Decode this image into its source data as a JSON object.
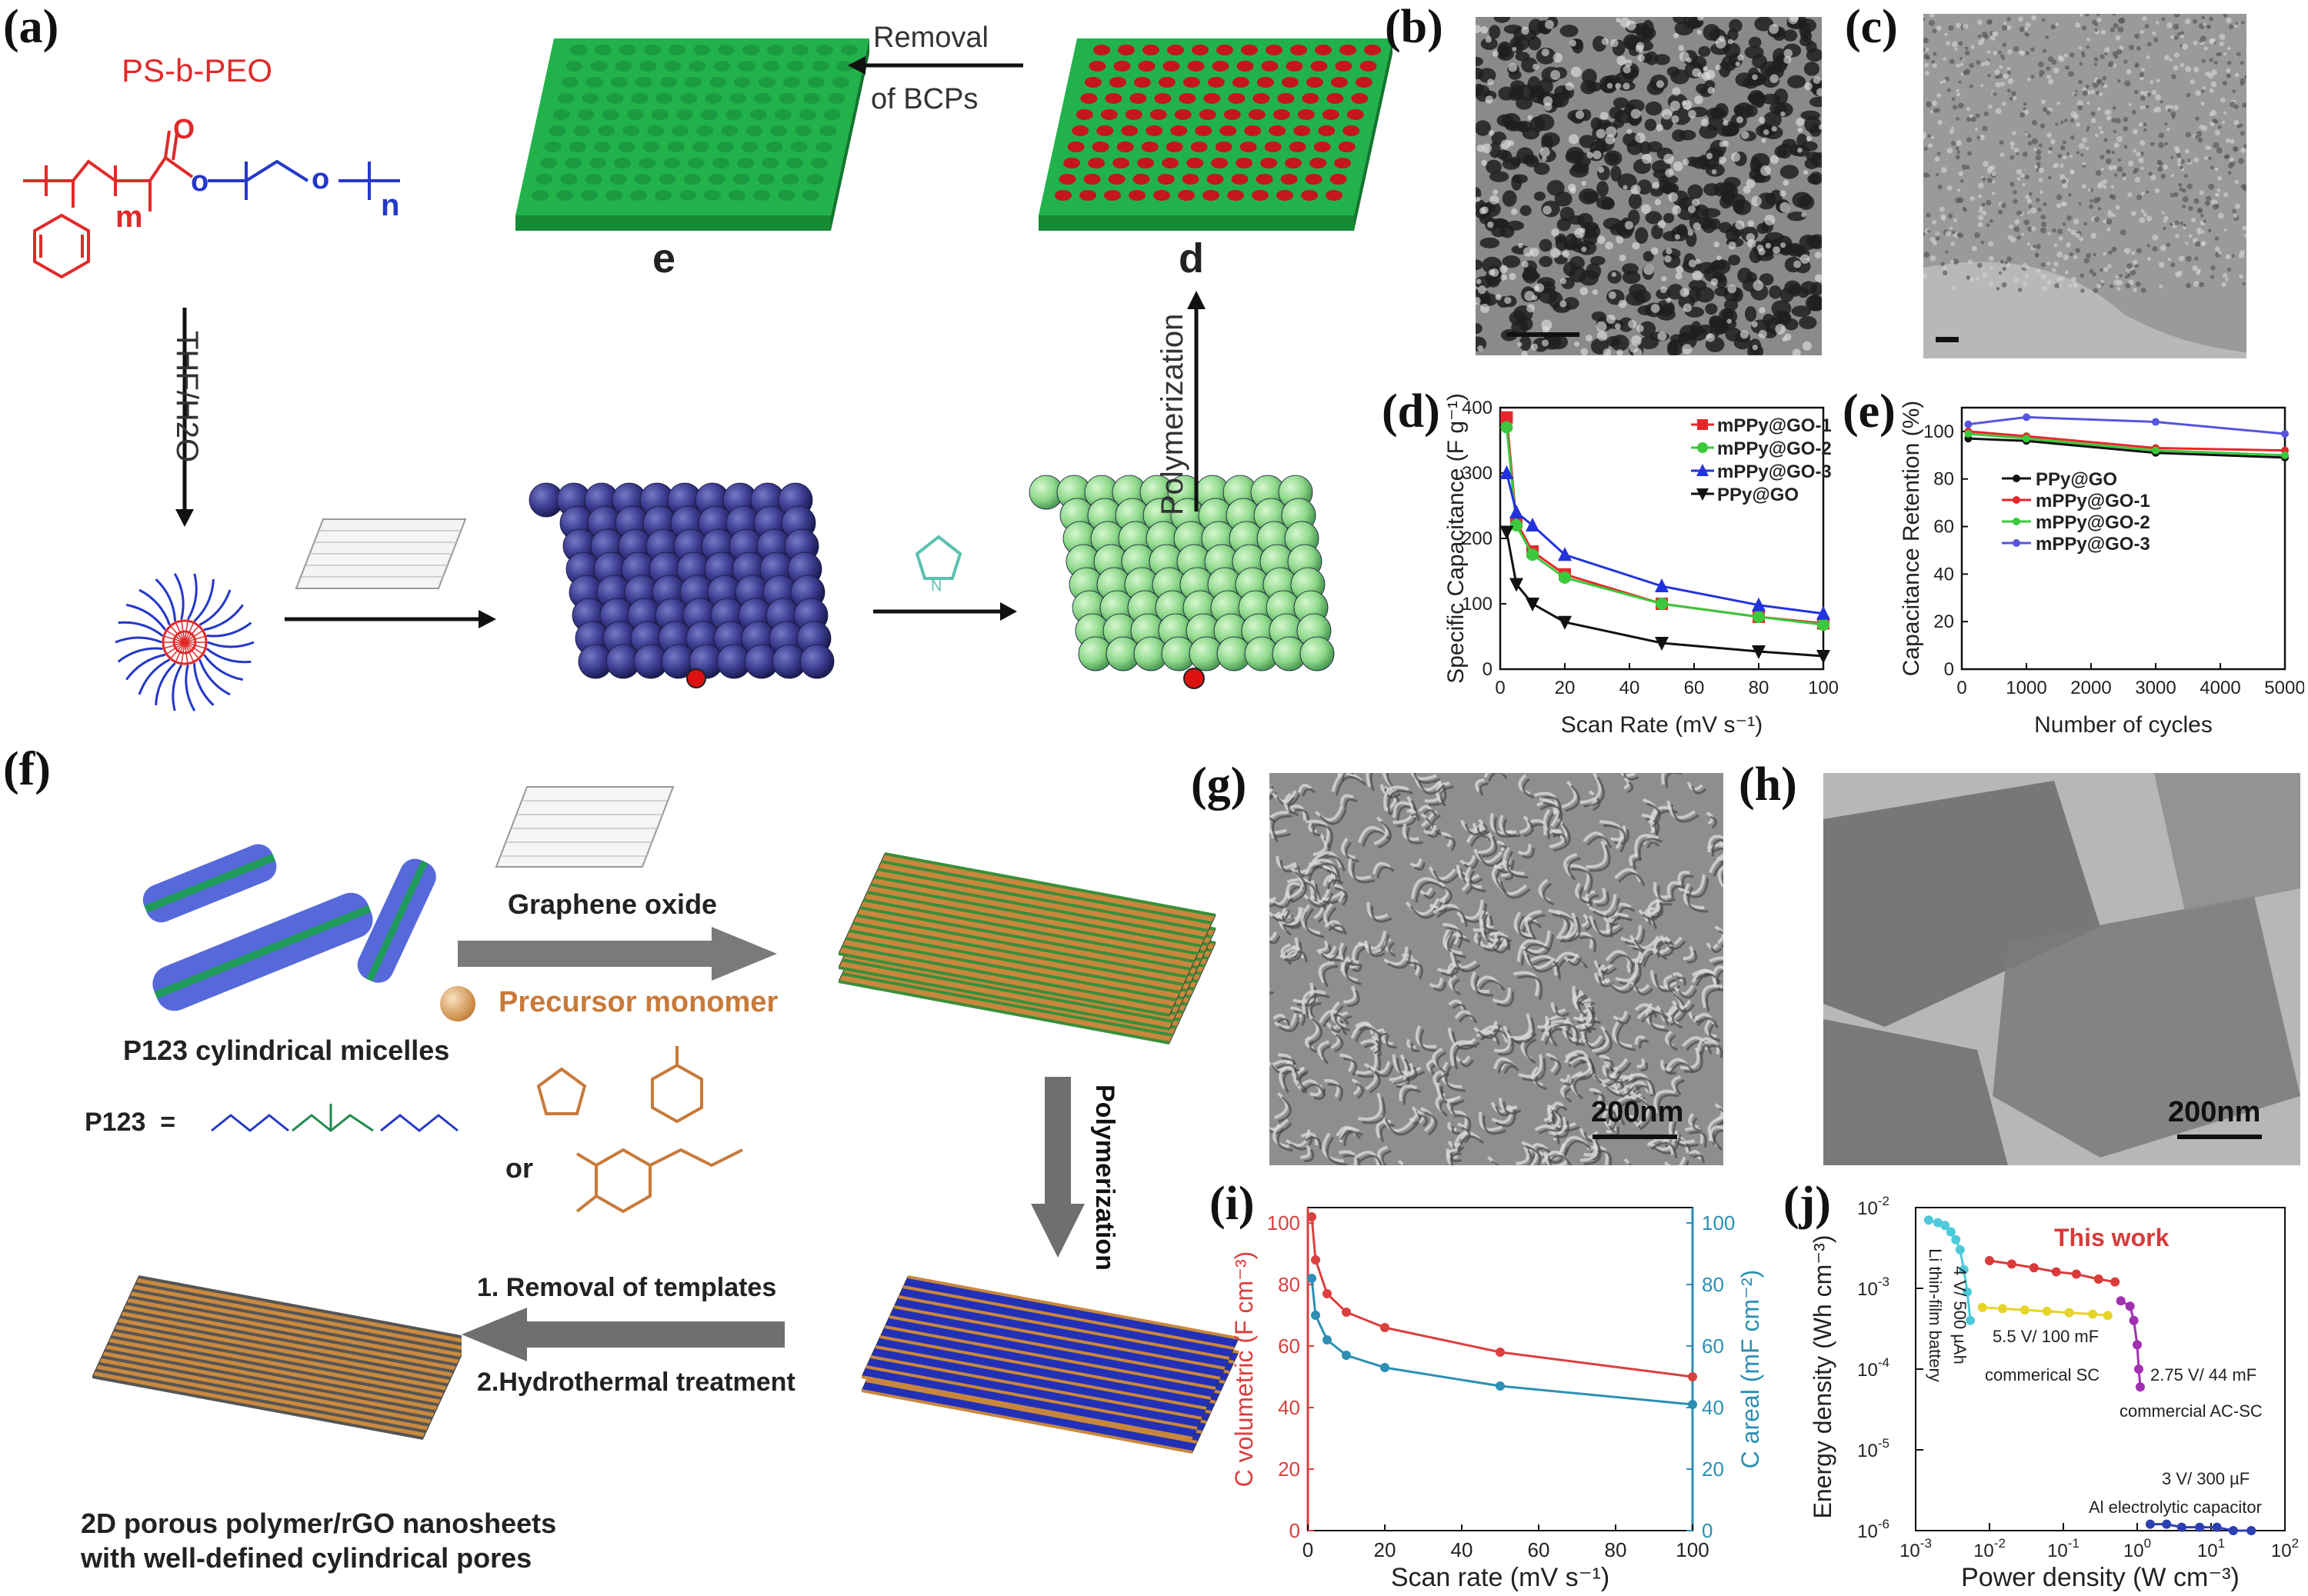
{
  "panels": {
    "a": "(a)",
    "b": "(b)",
    "c": "(c)",
    "d": "(d)",
    "e": "(e)",
    "f": "(f)",
    "g": "(g)",
    "h": "(h)",
    "i": "(i)",
    "j": "(j)"
  },
  "schematic_a": {
    "polymer_name": "PS-b-PEO",
    "chem_m": "m",
    "chem_n": "n",
    "chem_o": "O",
    "solvent": "THF/H2O",
    "removal_line1": "Removal",
    "removal_line2": "of BCPs",
    "stage_e": "e",
    "stage_d": "d",
    "polymerization": "Polymerization",
    "nh": "N\nH"
  },
  "schematic_f": {
    "micelles_label": "P123 cylindrical micelles",
    "p123_eq": "P123  =",
    "graphene_oxide": "Graphene oxide",
    "precursor": "Precursor monomer",
    "or": "or",
    "polymerization": "Polymerization",
    "step1": "1. Removal of templates",
    "step2": "2.Hydrothermal treatment",
    "result_line1": "2D porous polymer/rGO nanosheets",
    "result_line2": "with well-defined cylindrical pores"
  },
  "images": {
    "g_scale": "200nm",
    "h_scale": "200nm"
  },
  "chart_data": [
    {
      "panel": "d",
      "type": "line",
      "xlabel": "Scan Rate (mV s⁻¹)",
      "ylabel": "Specific Capacitance (F g⁻¹)",
      "xlim": [
        0,
        100
      ],
      "ylim": [
        0,
        400
      ],
      "xticks": [
        0,
        20,
        40,
        60,
        80,
        100
      ],
      "yticks": [
        0,
        100,
        200,
        300,
        400
      ],
      "x": [
        2,
        5,
        10,
        20,
        50,
        80,
        100
      ],
      "series": [
        {
          "name": "mPPy@GO-1",
          "color": "#e8262a",
          "marker": "square",
          "values": [
            385,
            225,
            180,
            145,
            100,
            80,
            70
          ]
        },
        {
          "name": "mPPy@GO-2",
          "color": "#3cc83c",
          "marker": "circle",
          "values": [
            370,
            220,
            175,
            140,
            100,
            80,
            68
          ]
        },
        {
          "name": "mPPy@GO-3",
          "color": "#2233dd",
          "marker": "triangle",
          "values": [
            300,
            240,
            220,
            175,
            127,
            98,
            85
          ]
        },
        {
          "name": "PPy@GO",
          "color": "#111111",
          "marker": "triangle-down",
          "values": [
            210,
            130,
            100,
            72,
            40,
            27,
            20
          ]
        }
      ],
      "legend": "top-right"
    },
    {
      "panel": "e",
      "type": "line",
      "xlabel": "Number of cycles",
      "ylabel": "Capacitance Retention (%)",
      "xlim": [
        0,
        5000
      ],
      "ylim": [
        0,
        110
      ],
      "xticks": [
        0,
        1000,
        2000,
        3000,
        4000,
        5000
      ],
      "yticks": [
        0,
        20,
        40,
        60,
        80,
        100
      ],
      "x": [
        100,
        1000,
        3000,
        5000
      ],
      "series": [
        {
          "name": "PPy@GO",
          "color": "#111111",
          "values": [
            97,
            96,
            91,
            89
          ]
        },
        {
          "name": "mPPy@GO-1",
          "color": "#e8262a",
          "values": [
            100,
            98,
            93,
            92
          ]
        },
        {
          "name": "mPPy@GO-2",
          "color": "#3cc83c",
          "values": [
            99,
            97,
            92,
            90
          ]
        },
        {
          "name": "mPPy@GO-3",
          "color": "#5555dd",
          "values": [
            103,
            106,
            104,
            99
          ]
        }
      ],
      "legend": "middle"
    },
    {
      "panel": "i",
      "type": "line",
      "xlabel": "Scan rate (mV s⁻¹)",
      "ylabel_left": "C volumetric (F cm⁻³)",
      "ylabel_right": "C areal (mF cm⁻²)",
      "xlim": [
        0,
        100
      ],
      "ylim": [
        0,
        105
      ],
      "xticks": [
        0,
        20,
        40,
        60,
        80,
        100
      ],
      "yticks": [
        0,
        20,
        40,
        60,
        80,
        100
      ],
      "x": [
        1,
        2,
        5,
        10,
        20,
        50,
        100
      ],
      "series": [
        {
          "name": "volumetric",
          "color": "#d9403f",
          "values": [
            102,
            88,
            77,
            71,
            66,
            58,
            50
          ]
        },
        {
          "name": "areal",
          "color": "#2c8fb3",
          "values": [
            82,
            70,
            62,
            57,
            53,
            47,
            41
          ]
        }
      ]
    },
    {
      "panel": "j",
      "type": "scatter",
      "xlabel": "Power density (W cm⁻³)",
      "ylabel": "Energy density (Wh cm⁻³)",
      "xscale": "log",
      "yscale": "log",
      "xlim": [
        0.001,
        100
      ],
      "ylim": [
        1e-06,
        0.01
      ],
      "annotations": [
        "This work",
        "Li thin-film battery",
        "4 V/ 500 µAh",
        "5.5 V/ 100 mF",
        "commerical SC",
        "2.75 V/ 44 mF",
        "commercial AC-SC",
        "3 V/ 300 µF",
        "Al electrolytic capacitor"
      ],
      "series": [
        {
          "name": "This work",
          "color": "#d93a3a",
          "x": [
            0.01,
            0.02,
            0.04,
            0.08,
            0.15,
            0.3,
            0.5
          ],
          "y": [
            0.0022,
            0.002,
            0.0018,
            0.0016,
            0.0015,
            0.0013,
            0.0012
          ]
        },
        {
          "name": "Li thin-film battery",
          "color": "#4ec9d9",
          "x": [
            0.0015,
            0.002,
            0.0025,
            0.003,
            0.0035,
            0.004,
            0.0045,
            0.005,
            0.0055
          ],
          "y": [
            0.007,
            0.0065,
            0.006,
            0.005,
            0.004,
            0.003,
            0.0017,
            0.0009,
            0.0004
          ]
        },
        {
          "name": "commerical SC",
          "color": "#e6d42a",
          "x": [
            0.008,
            0.015,
            0.03,
            0.06,
            0.12,
            0.25,
            0.4
          ],
          "y": [
            0.00058,
            0.00056,
            0.00054,
            0.00052,
            0.0005,
            0.00048,
            0.00046
          ]
        },
        {
          "name": "commercial AC-SC",
          "color": "#a030b0",
          "x": [
            0.6,
            0.8,
            0.9,
            1.0,
            1.05,
            1.1
          ],
          "y": [
            0.0007,
            0.0006,
            0.0004,
            0.0002,
            0.0001,
            6e-05
          ]
        },
        {
          "name": "Al electrolytic capacitor",
          "color": "#2c3fb0",
          "x": [
            1.5,
            2.5,
            4,
            7,
            12,
            20,
            35
          ],
          "y": [
            1.2e-06,
            1.2e-06,
            1.1e-06,
            1.1e-06,
            1.1e-06,
            1e-06,
            1e-06
          ]
        }
      ]
    }
  ]
}
